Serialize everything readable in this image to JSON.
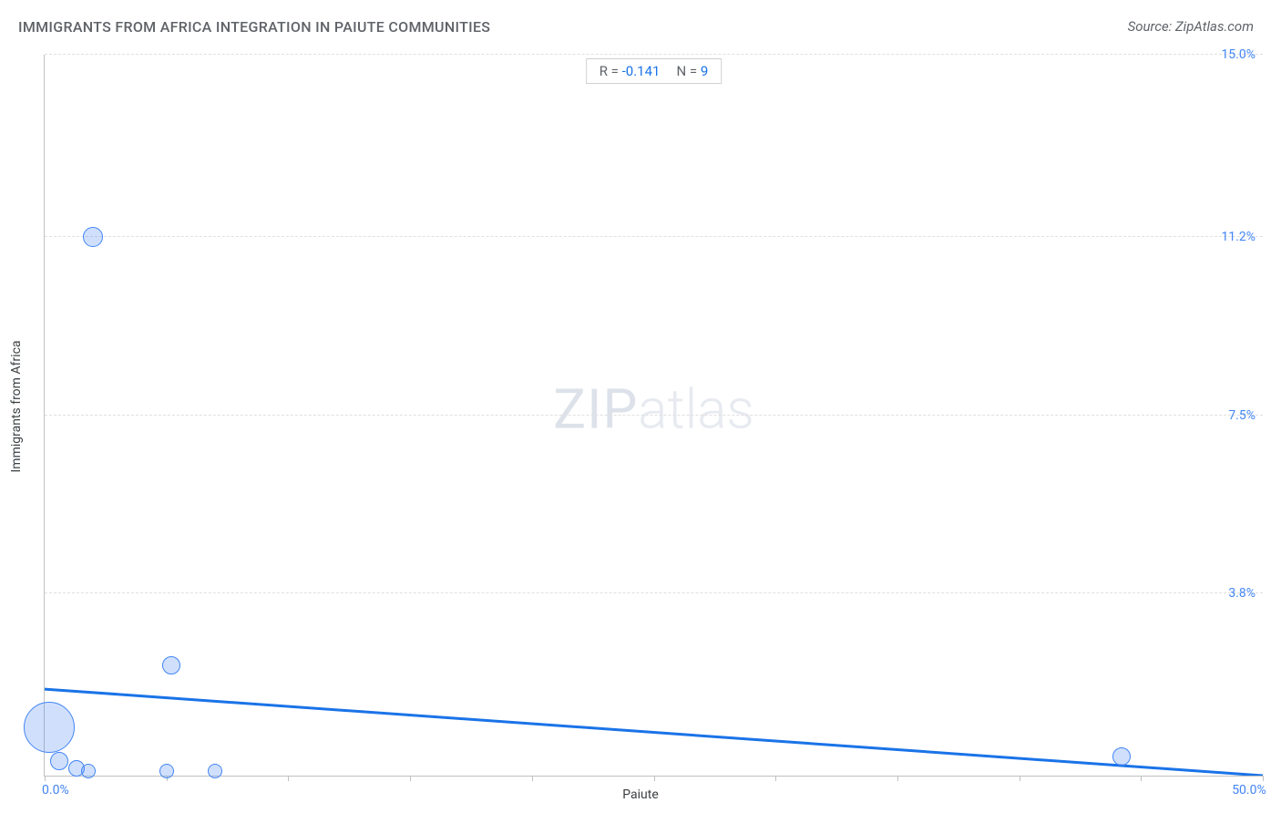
{
  "header": {
    "title": "IMMIGRANTS FROM AFRICA INTEGRATION IN PAIUTE COMMUNITIES",
    "source": "Source: ZipAtlas.com"
  },
  "chart": {
    "type": "scatter",
    "x_label": "Paiute",
    "y_label": "Immigrants from Africa",
    "xlim": [
      0,
      50
    ],
    "ylim": [
      0,
      15
    ],
    "x_min_label": "0.0%",
    "x_max_label": "50.0%",
    "y_ticks": [
      {
        "value": 3.8,
        "label": "3.8%"
      },
      {
        "value": 7.5,
        "label": "7.5%"
      },
      {
        "value": 11.2,
        "label": "11.2%"
      },
      {
        "value": 15.0,
        "label": "15.0%"
      }
    ],
    "x_tick_positions": [
      0,
      5,
      10,
      15,
      20,
      25,
      30,
      35,
      40,
      45,
      50
    ],
    "bubble_fill": "rgba(66,133,244,0.25)",
    "bubble_stroke": "#4285f4",
    "trend_color": "#1a73e8",
    "trend_width": 3,
    "grid_color": "#e0e0e0",
    "background": "#ffffff",
    "points": [
      {
        "x": 0.2,
        "y": 1.0,
        "r": 28
      },
      {
        "x": 0.6,
        "y": 0.3,
        "r": 10
      },
      {
        "x": 1.3,
        "y": 0.15,
        "r": 9
      },
      {
        "x": 1.8,
        "y": 0.1,
        "r": 8
      },
      {
        "x": 2.0,
        "y": 11.2,
        "r": 11
      },
      {
        "x": 5.2,
        "y": 2.3,
        "r": 10
      },
      {
        "x": 5.0,
        "y": 0.1,
        "r": 8
      },
      {
        "x": 7.0,
        "y": 0.1,
        "r": 8
      },
      {
        "x": 44.2,
        "y": 0.4,
        "r": 10
      }
    ],
    "trend": {
      "y_at_x0": 1.8,
      "y_at_xmax": 0.0
    },
    "stats": {
      "r_label": "R =",
      "r_value": "-0.141",
      "n_label": "N =",
      "n_value": "9"
    },
    "watermark": {
      "part1": "ZIP",
      "part2": "atlas"
    }
  }
}
